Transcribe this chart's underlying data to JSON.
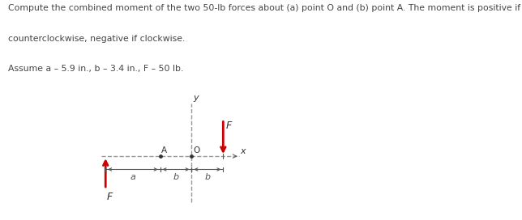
{
  "text_lines": [
    "Compute the combined moment of the two 50-lb forces about (a) point O and (b) point A. The moment is positive if",
    "counterclockwise, negative if clockwise.",
    "Assume a – 5.9 in., b – 3.4 in., F – 50 lb."
  ],
  "background_color": "#ffffff",
  "text_color": "#444444",
  "text_fontsize": 7.8,
  "arrow_color": "#cc0000",
  "dashed_color": "#999999",
  "axis_color": "#666666",
  "label_color": "#333333",
  "dim_color": "#555555"
}
